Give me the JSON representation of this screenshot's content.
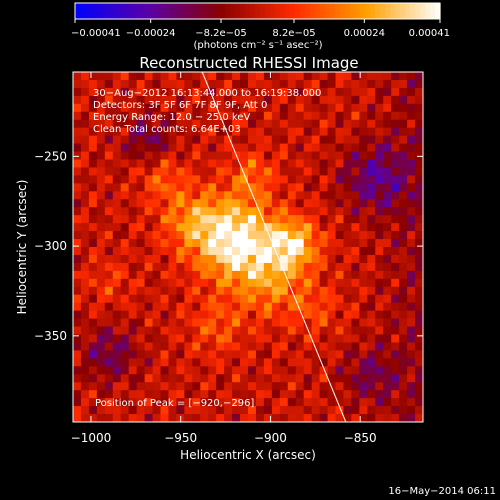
{
  "chart_data": {
    "type": "heatmap",
    "title": "Reconstructed RHESSI Image",
    "xlabel": "Heliocentric X (arcsec)",
    "ylabel": "Heliocentric Y (arcsec)",
    "xlim": [
      -1010,
      -815
    ],
    "ylim": [
      -398,
      -203
    ],
    "x_ticks": [
      -1000,
      -950,
      -900,
      -850
    ],
    "x_tick_labels": [
      "−1000",
      "−950",
      "−900",
      "−850"
    ],
    "y_ticks": [
      -250,
      -300,
      -350
    ],
    "y_tick_labels": [
      "−250",
      "−300",
      "−350"
    ],
    "colorbar": {
      "range": [
        -0.00041,
        0.00041
      ],
      "ticks": [
        -0.00041,
        -0.00024,
        -8.2e-05,
        8.2e-05,
        0.00024,
        0.00041
      ],
      "tick_labels": [
        "−0.00041",
        "−0.00024",
        "−8.2e−05",
        "8.2e−05",
        "0.00024",
        "0.00041"
      ],
      "label": "(photons cm⁻² s⁻¹ asec⁻²)",
      "colors": [
        "#0000ff",
        "#5a00a8",
        "#8a0000",
        "#ff2a00",
        "#ffa000",
        "#ffffff"
      ]
    },
    "info_lines": [
      "30−Aug−2012 16:13:44.000 to 16:19:38.000",
      "Detectors: 3F 5F 6F 7F 8F 9F, Att 0",
      "Energy Range: 12.0 − 25.0 keV",
      "Clean     Total counts: 6.64E+03"
    ],
    "peak_label": "Position of Peak = [−920,−296]",
    "peak": [
      -920,
      -296
    ],
    "limb_line": [
      [
        -938,
        -203
      ],
      [
        -858,
        -398
      ]
    ],
    "sources": [
      {
        "x": -920,
        "y": -296,
        "r": 16,
        "v": 0.00041
      },
      {
        "x": -887,
        "y": -299,
        "r": 10,
        "v": 0.0003
      },
      {
        "x": -900,
        "y": -320,
        "r": 14,
        "v": 0.00018
      },
      {
        "x": -945,
        "y": -285,
        "r": 12,
        "v": 0.00016
      },
      {
        "x": -960,
        "y": -262,
        "r": 9,
        "v": 0.00013
      },
      {
        "x": -910,
        "y": -260,
        "r": 9,
        "v": 0.00014
      },
      {
        "x": -875,
        "y": -335,
        "r": 10,
        "v": 0.0001
      },
      {
        "x": -990,
        "y": -320,
        "r": 9,
        "v": 8e-05
      },
      {
        "x": -930,
        "y": -345,
        "r": 11,
        "v": 0.00012
      },
      {
        "x": -968,
        "y": -240,
        "r": 10,
        "v": -0.00015
      },
      {
        "x": -842,
        "y": -262,
        "r": 13,
        "v": -0.0002
      },
      {
        "x": -990,
        "y": -360,
        "r": 11,
        "v": -0.00016
      },
      {
        "x": -845,
        "y": -372,
        "r": 11,
        "v": -0.00014
      }
    ]
  },
  "footer": {
    "date": "16−May−2014 06:11"
  }
}
